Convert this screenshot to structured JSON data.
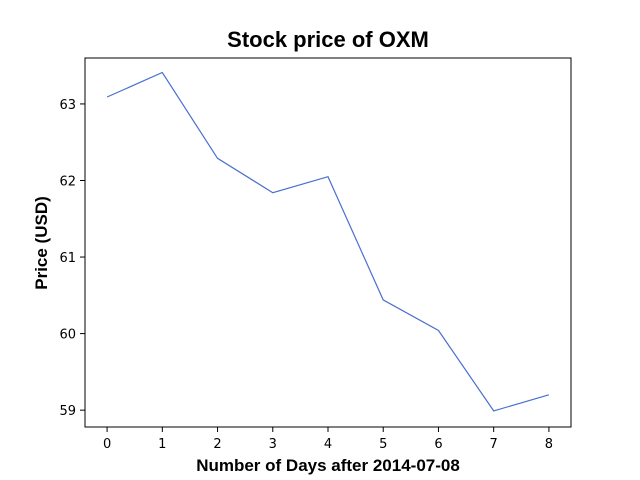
{
  "chart_data": {
    "type": "line",
    "title": "Stock price of OXM",
    "xlabel": "Number of Days after 2014-07-08",
    "ylabel": "Price (USD)",
    "x": [
      0,
      1,
      2,
      3,
      4,
      5,
      6,
      7,
      8
    ],
    "series": [
      {
        "values": [
          63.09,
          63.41,
          62.29,
          61.84,
          62.05,
          60.44,
          60.04,
          58.99,
          59.2
        ],
        "color": "#4a6fd0"
      }
    ],
    "xlim": [
      -0.4,
      8.4
    ],
    "ylim": [
      58.78,
      63.6
    ],
    "xticks": [
      0,
      1,
      2,
      3,
      4,
      5,
      6,
      7,
      8
    ],
    "yticks": [
      59,
      60,
      61,
      62,
      63
    ],
    "grid": false,
    "legend": "none"
  }
}
